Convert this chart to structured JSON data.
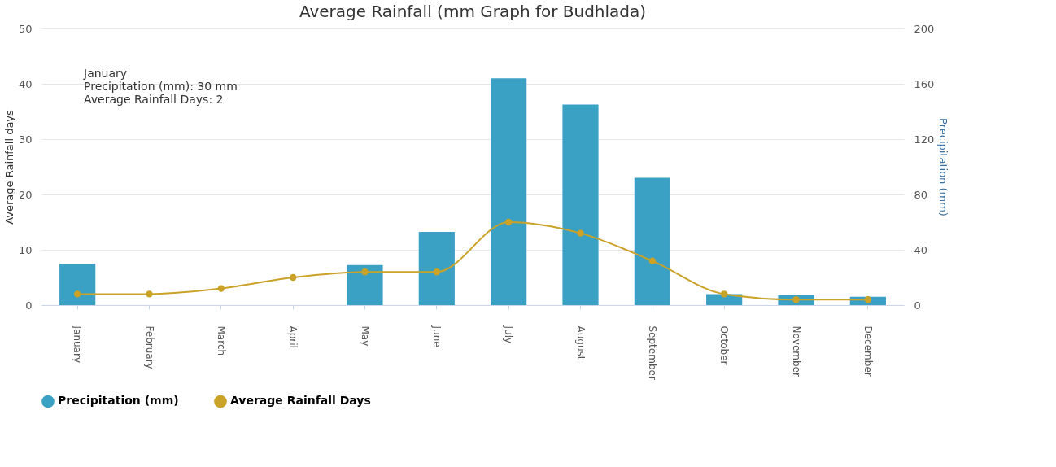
{
  "chart_data": {
    "type": "bar",
    "title": "Average Rainfall (mm Graph for Budhlada)",
    "categories": [
      "January",
      "February",
      "March",
      "April",
      "May",
      "June",
      "July",
      "August",
      "September",
      "October",
      "November",
      "December"
    ],
    "series": [
      {
        "name": "Precipitation (mm)",
        "axis": "y2",
        "color": "#3aa0c4",
        "values": [
          30,
          null,
          null,
          null,
          29,
          53,
          164,
          145,
          92,
          8,
          7,
          6
        ]
      },
      {
        "name": "Average Rainfall Days",
        "type": "line",
        "color": "#c9a227",
        "marker": "circle",
        "values": [
          2,
          2,
          3,
          5,
          6,
          6,
          15,
          13,
          8,
          2,
          1,
          1
        ]
      }
    ],
    "ylabel": "Average Rainfall days",
    "y2label": "Precipitation (mm)",
    "ylim": [
      0,
      50
    ],
    "yticks": [
      0,
      10,
      20,
      30,
      40,
      50
    ],
    "y2lim": [
      0,
      200
    ],
    "y2ticks": [
      0,
      40,
      80,
      120,
      160,
      200
    ],
    "grid": "y",
    "legend": "bottom",
    "annotations": [
      "January",
      "Precipitation (mm): 30 mm",
      "Average Rainfall Days: 2"
    ]
  }
}
